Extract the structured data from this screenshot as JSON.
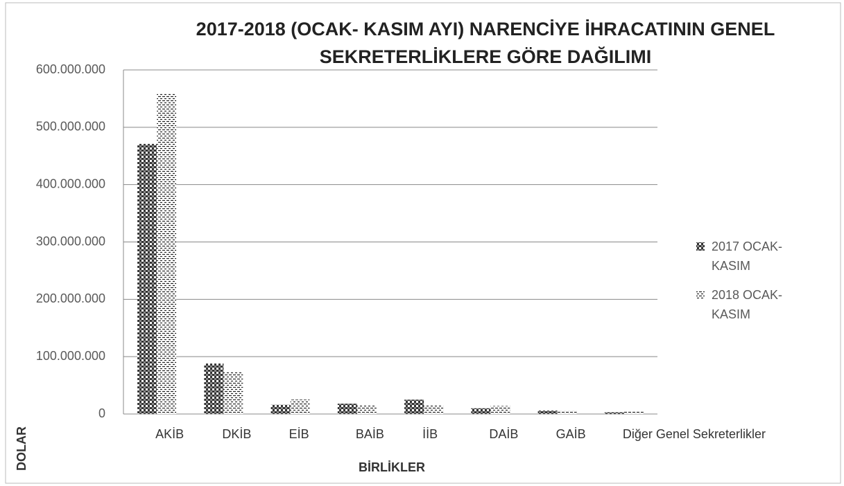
{
  "chart_data": {
    "type": "bar",
    "title": "2017-2018 (OCAK- KASIM AYI) NARENCİYE İHRACATININ GENEL SEKRETERLİKLERE GÖRE DAĞILIMI",
    "x_label": "BİRLİKLER",
    "y_label": "DOLAR",
    "categories": [
      "AKİB",
      "DKİB",
      "EİB",
      "BAİB",
      "İİB",
      "DAİB",
      "GAİB",
      "Diğer Genel Sekreterlikler"
    ],
    "series": [
      {
        "name": "2017 OCAK-KASIM",
        "color": "#333333",
        "values": [
          471000000,
          88000000,
          16000000,
          18000000,
          25000000,
          10000000,
          6000000,
          3000000
        ]
      },
      {
        "name": "2018 OCAK-KASIM",
        "color": "#222222",
        "values": [
          559000000,
          74000000,
          25000000,
          15000000,
          15000000,
          14000000,
          6000000,
          5000000
        ]
      }
    ],
    "ylim": [
      0,
      600000000
    ],
    "yticks": [
      0,
      {
        "value": 100000000,
        "label": "100.000.000"
      },
      {
        "value": 200000000,
        "label": "200.000.000"
      },
      {
        "value": 300000000,
        "label": "300.000.000"
      },
      {
        "value": 400000000,
        "label": "400.000.000"
      },
      {
        "value": 500000000,
        "label": "500.000.000"
      },
      {
        "value": 600000000,
        "label": "600.000.000"
      }
    ],
    "grid": true,
    "legend": "right"
  }
}
